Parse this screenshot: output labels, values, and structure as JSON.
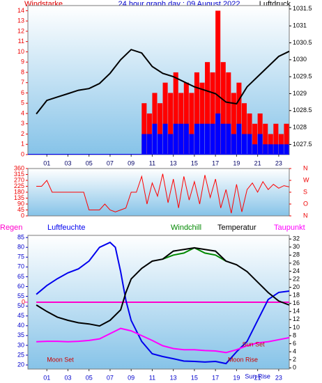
{
  "chart_data": [
    {
      "type": "bar",
      "title": "24 hour graph day : 09 August 2022",
      "ylabel": "Windstarke",
      "y2label": "Luftdruck",
      "xlim": [
        -0.8,
        24
      ],
      "xticks": [
        {
          "value": 1,
          "label": "01"
        },
        {
          "value": 3,
          "label": "03"
        },
        {
          "value": 5,
          "label": "05"
        },
        {
          "value": 7,
          "label": "07"
        },
        {
          "value": 9,
          "label": "09"
        },
        {
          "value": 11,
          "label": "11"
        },
        {
          "value": 13,
          "label": "13"
        },
        {
          "value": 15,
          "label": "15"
        },
        {
          "value": 17,
          "label": "17"
        },
        {
          "value": 19,
          "label": "19"
        },
        {
          "value": 21,
          "label": "21"
        },
        {
          "value": 23,
          "label": "23"
        }
      ],
      "ylim": [
        0,
        14.5
      ],
      "yticks": [
        0,
        1,
        2,
        3,
        4,
        5,
        6,
        7,
        8,
        9,
        10,
        11,
        12,
        13,
        14
      ],
      "y2lim": [
        1027.2,
        1031.6
      ],
      "y2ticks": [
        1027.5,
        1028,
        1028.5,
        1029,
        1029.5,
        1030,
        1030.5,
        1031,
        1031.5
      ],
      "series": [
        {
          "color": "#ff0000",
          "x": [
            0,
            0.5,
            1,
            1.5,
            2,
            2.5,
            3,
            3.5,
            4,
            4.5,
            5,
            5.5,
            6,
            6.5,
            7,
            7.5,
            8,
            8.5,
            9,
            9.5,
            10,
            10.5,
            11,
            11.5,
            12,
            12.5,
            13,
            13.5,
            14,
            14.5,
            15,
            15.5,
            16,
            16.5,
            17,
            17.5,
            18,
            18.5,
            19,
            19.5,
            20,
            20.5,
            21,
            21.5,
            22,
            22.5,
            23,
            23.5
          ],
          "values": [
            0,
            0,
            0,
            0,
            0,
            0,
            0,
            0,
            0,
            0,
            0,
            0,
            0,
            0,
            0,
            0,
            0,
            0,
            0,
            0,
            5,
            4,
            6,
            5,
            7,
            6,
            8,
            6,
            7,
            6,
            8,
            7,
            9,
            8,
            14,
            9,
            8,
            6,
            7,
            5,
            4,
            3,
            4,
            3,
            2,
            3,
            2,
            3
          ]
        },
        {
          "color": "#0000ff",
          "x": [
            0,
            0.5,
            1,
            1.5,
            2,
            2.5,
            3,
            3.5,
            4,
            4.5,
            5,
            5.5,
            6,
            6.5,
            7,
            7.5,
            8,
            8.5,
            9,
            9.5,
            10,
            10.5,
            11,
            11.5,
            12,
            12.5,
            13,
            13.5,
            14,
            14.5,
            15,
            15.5,
            16,
            16.5,
            17,
            17.5,
            18,
            18.5,
            19,
            19.5,
            20,
            20.5,
            21,
            21.5,
            22,
            22.5,
            23,
            23.5
          ],
          "values": [
            0,
            0,
            0,
            0,
            0,
            0,
            0,
            0,
            0,
            0,
            0,
            0,
            0,
            0,
            0,
            0,
            0,
            0,
            0,
            0,
            2,
            2,
            3,
            2,
            3,
            2,
            3,
            3,
            3,
            2,
            3,
            3,
            3,
            3,
            4,
            3,
            3,
            2,
            3,
            2,
            2,
            1,
            2,
            1,
            1,
            1,
            1,
            1
          ]
        },
        {
          "type": "line",
          "axis": "y2",
          "color": "#000000",
          "x": [
            0,
            1,
            2,
            3,
            4,
            5,
            6,
            7,
            8,
            9,
            10,
            11,
            12,
            13,
            14,
            15,
            16,
            17,
            18,
            19,
            20,
            21,
            22,
            23,
            24
          ],
          "values": [
            1028.4,
            1028.8,
            1028.9,
            1029.0,
            1029.1,
            1029.15,
            1029.3,
            1029.6,
            1030.0,
            1030.3,
            1030.2,
            1029.8,
            1029.6,
            1029.5,
            1029.35,
            1029.2,
            1029.1,
            1029.0,
            1028.75,
            1028.7,
            1029.2,
            1029.5,
            1029.8,
            1030.1,
            1030.25
          ]
        }
      ]
    },
    {
      "type": "line",
      "xlim": [
        -0.8,
        24
      ],
      "ylim": [
        0,
        360
      ],
      "yticks": [
        0,
        45,
        90,
        135,
        180,
        225,
        270,
        315,
        360
      ],
      "y2lim": [
        0,
        360
      ],
      "y2ticks": [
        {
          "value": 0,
          "label": "N"
        },
        {
          "value": 90,
          "label": "O"
        },
        {
          "value": 180,
          "label": "S"
        },
        {
          "value": 270,
          "label": "W"
        },
        {
          "value": 360,
          "label": "N"
        }
      ],
      "series": [
        {
          "color": "#ff0000",
          "x": [
            0,
            0.5,
            1,
            1.5,
            2,
            2.5,
            3,
            3.5,
            4,
            4.5,
            5,
            5.5,
            6,
            6.5,
            7,
            7.5,
            8,
            8.5,
            9,
            9.5,
            10,
            10.5,
            11,
            11.5,
            12,
            12.5,
            13,
            13.5,
            14,
            14.5,
            15,
            15.5,
            16,
            16.5,
            17,
            17.5,
            18,
            18.5,
            19,
            19.5,
            20,
            20.5,
            21,
            21.5,
            22,
            22.5,
            23,
            23.5,
            24
          ],
          "values": [
            225,
            225,
            270,
            180,
            180,
            180,
            180,
            180,
            180,
            180,
            45,
            45,
            45,
            90,
            45,
            30,
            45,
            60,
            180,
            180,
            300,
            90,
            250,
            150,
            320,
            100,
            280,
            60,
            300,
            120,
            260,
            90,
            310,
            140,
            280,
            60,
            200,
            20,
            240,
            30,
            200,
            250,
            180,
            260,
            200,
            240,
            210,
            230,
            220
          ]
        }
      ]
    },
    {
      "type": "line",
      "xlim": [
        -0.8,
        24
      ],
      "xticks": [
        {
          "value": 1,
          "label": "01"
        },
        {
          "value": 3,
          "label": "03"
        },
        {
          "value": 5,
          "label": "05"
        },
        {
          "value": 7,
          "label": "07"
        },
        {
          "value": 9,
          "label": "09"
        },
        {
          "value": 11,
          "label": "11"
        },
        {
          "value": 13,
          "label": "13"
        },
        {
          "value": 15,
          "label": "15"
        },
        {
          "value": 17,
          "label": "17"
        },
        {
          "value": 19,
          "label": "19"
        },
        {
          "value": 21,
          "label": "21"
        },
        {
          "value": 23,
          "label": "23"
        }
      ],
      "ylim": [
        17.9,
        86.1
      ],
      "yticks": [
        20,
        25,
        30,
        35,
        40,
        45,
        50,
        55,
        60,
        65,
        70,
        75,
        80,
        85
      ],
      "y2lim": [
        -0.3,
        32.9
      ],
      "y2ticks": [
        0,
        2,
        4,
        6,
        8,
        10,
        12,
        14,
        16,
        18,
        20,
        22,
        24,
        26,
        28,
        30,
        32
      ],
      "y3lim": [
        -1,
        1
      ],
      "y3ticks": [
        0
      ],
      "series": [
        {
          "name": "Regen",
          "axis": "y3",
          "color": "#ff00cc",
          "x": [
            0,
            24
          ],
          "values": [
            0,
            0
          ]
        },
        {
          "name": "Luftfeuchte",
          "color": "#0000ee",
          "x": [
            0,
            1,
            2,
            3,
            4,
            5,
            6,
            7,
            7.5,
            8,
            8.5,
            9,
            10,
            11,
            12,
            13,
            14,
            15,
            16,
            17,
            18,
            19,
            20,
            21,
            22,
            23,
            24
          ],
          "values": [
            56,
            60.5,
            64,
            67,
            69,
            73,
            80,
            82.5,
            80,
            67.6,
            53,
            42.7,
            32,
            25.7,
            24.3,
            23.2,
            22,
            21.8,
            21.5,
            21.8,
            20.7,
            26.7,
            32,
            42.7,
            53.4,
            57,
            57.7
          ]
        },
        {
          "name": "Windchill",
          "axis": "y2",
          "color": "#008800",
          "x": [
            12,
            13,
            14,
            15,
            16,
            17,
            18
          ],
          "values": [
            27,
            28,
            28.5,
            29.8,
            28.5,
            28,
            26.5
          ]
        },
        {
          "name": "Temperatur",
          "axis": "y2",
          "color": "#000000",
          "x": [
            0,
            1,
            2,
            3,
            4,
            5,
            6,
            7,
            8,
            8.5,
            9,
            10,
            11,
            12,
            13,
            14,
            15,
            16,
            17,
            18,
            19,
            20,
            21,
            22,
            23,
            24
          ],
          "values": [
            15.6,
            14,
            12.6,
            11.8,
            11.2,
            10.9,
            10.4,
            11.8,
            14.4,
            18.7,
            22.1,
            24.7,
            26.5,
            27,
            29,
            29.4,
            29.8,
            29.4,
            29,
            26.5,
            25.6,
            23.9,
            21.3,
            18.7,
            16.6,
            15.6
          ]
        },
        {
          "name": "Taupunkt",
          "axis": "y2",
          "color": "#ff00ff",
          "x": [
            0,
            1,
            2,
            3,
            4,
            5,
            6,
            7,
            8,
            9,
            10,
            11,
            12,
            13,
            14,
            15,
            16,
            17,
            18,
            19,
            20,
            21,
            22,
            23,
            24
          ],
          "values": [
            6.5,
            6.6,
            6.6,
            6.5,
            6.6,
            6.8,
            7.2,
            8.5,
            9.8,
            9.2,
            8,
            6.8,
            5.5,
            4.8,
            4.5,
            4.5,
            4.3,
            4.2,
            3.8,
            4.5,
            5.5,
            6.2,
            6.5,
            7,
            7.5
          ]
        }
      ],
      "annotations": [
        {
          "text": "Moon Set",
          "x": 1,
          "color": "#cc0000"
        },
        {
          "text": "Moon Rise",
          "x": 19.6,
          "color": "#cc0000"
        },
        {
          "text": "Sun Set",
          "x": 20.6,
          "color": "#cc0000"
        },
        {
          "text": "Sun Rise",
          "x": 21,
          "color": "#0000cc"
        }
      ]
    }
  ]
}
